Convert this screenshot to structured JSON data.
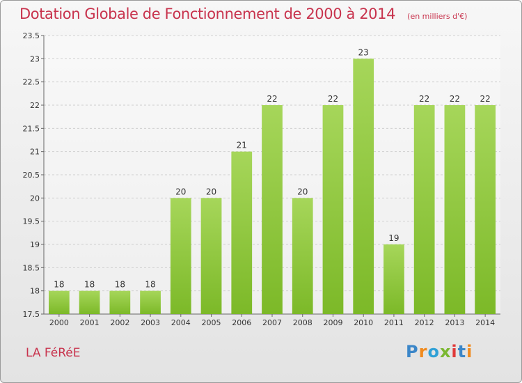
{
  "title": "Dotation Globale de Fonctionnement de 2000 à 2014",
  "subtitle": "(en milliers d'€)",
  "commune": "LA FéRéE",
  "logo": {
    "letters": [
      "P",
      "r",
      "o",
      "x",
      "i",
      "t",
      "i"
    ],
    "colors": [
      "#3b86c8",
      "#f08a1d",
      "#2fa0d6",
      "#7ab730",
      "#e03a3a",
      "#3b86c8",
      "#f08a1d"
    ]
  },
  "colors": {
    "bar": "#7cb928",
    "bar_light": "#a6d65a",
    "title": "#c8334d",
    "grid": "#cfcfcf",
    "axis": "#666666"
  },
  "chart_data": {
    "type": "bar",
    "title": "Dotation Globale de Fonctionnement de 2000 à 2014",
    "subtitle": "(en milliers d'€)",
    "categories": [
      "2000",
      "2001",
      "2002",
      "2003",
      "2004",
      "2005",
      "2006",
      "2007",
      "2008",
      "2009",
      "2010",
      "2011",
      "2012",
      "2013",
      "2014"
    ],
    "values": [
      18,
      18,
      18,
      18,
      20,
      20,
      21,
      22,
      20,
      22,
      23,
      19,
      22,
      22,
      22
    ],
    "labels": [
      "18",
      "18",
      "18",
      "18",
      "20",
      "20",
      "21",
      "22",
      "20",
      "22",
      "23",
      "19",
      "22",
      "22",
      "22"
    ],
    "ylim": [
      17.5,
      23.5
    ],
    "yticks": [
      17.5,
      18,
      18.5,
      19,
      19.5,
      20,
      20.5,
      21,
      21.5,
      22,
      22.5,
      23,
      23.5
    ],
    "ytick_labels": [
      "17.5",
      "18",
      "18.5",
      "19",
      "19.5",
      "20",
      "20.5",
      "21",
      "21.5",
      "22",
      "22.5",
      "23",
      "23.5"
    ],
    "grid": true,
    "legend": "none"
  }
}
